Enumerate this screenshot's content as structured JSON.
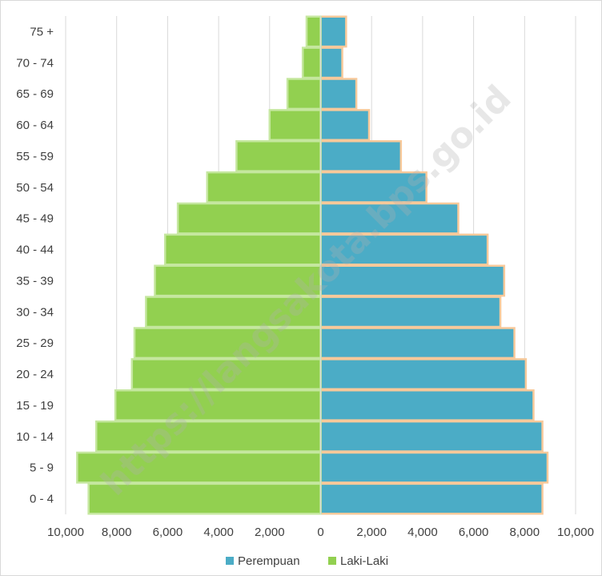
{
  "chart_data": {
    "type": "bar",
    "orientation": "horizontal",
    "subtype": "population-pyramid",
    "categories": [
      "0 - 4",
      "5 - 9",
      "10 - 14",
      "15 - 19",
      "20 - 24",
      "25 - 29",
      "30 - 34",
      "35 - 39",
      "40 - 44",
      "45 - 49",
      "50 - 54",
      "55 - 59",
      "60 - 64",
      "65 - 69",
      "70 - 74",
      "75 +"
    ],
    "series": [
      {
        "name": "Perempuan",
        "side": "right",
        "color": "#4bacc6",
        "values": [
          8700,
          8900,
          8700,
          8350,
          8050,
          7600,
          7050,
          7200,
          6550,
          5400,
          4150,
          3150,
          1900,
          1400,
          850,
          1000
        ]
      },
      {
        "name": "Laki-Laki",
        "side": "left",
        "color": "#92d050",
        "values": [
          9100,
          9550,
          8800,
          8050,
          7400,
          7300,
          6850,
          6500,
          6100,
          5600,
          4450,
          3300,
          2000,
          1300,
          700,
          550
        ]
      }
    ],
    "xlim": [
      -10000,
      10000
    ],
    "x_ticks": [
      "10,000",
      "8,000",
      "6,000",
      "4,000",
      "2,000",
      "0",
      "2,000",
      "4,000",
      "6,000",
      "8,000",
      "10,000"
    ],
    "grid": "vertical",
    "legend": "bottom-center",
    "title": "",
    "xlabel": "",
    "ylabel": ""
  },
  "watermark_text": "https://langsakota.bps.go.id"
}
